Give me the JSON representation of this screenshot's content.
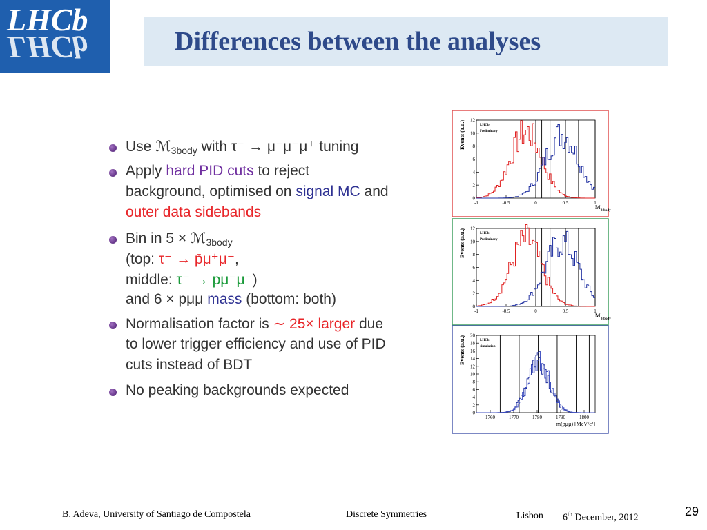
{
  "header": {
    "logo": "LHCb",
    "title": "Differences between the analyses"
  },
  "bullets": [
    {
      "lines": [
        [
          {
            "text": "Use "
          },
          {
            "text": "ℳ"
          },
          {
            "text": "3body",
            "sub": true
          },
          {
            "text": " with "
          },
          {
            "text": "τ⁻ → μ⁻μ⁻μ⁺"
          },
          {
            "text": " tuning"
          }
        ]
      ]
    },
    {
      "lines": [
        [
          {
            "text": "Apply "
          },
          {
            "text": "hard PID cuts",
            "color": "#7030a0"
          },
          {
            "text": " to reject"
          }
        ],
        [
          {
            "text": "background, optimised on "
          },
          {
            "text": "signal MC",
            "color": "#2e3192"
          },
          {
            "text": " and"
          }
        ],
        [
          {
            "text": "outer data sidebands",
            "color": "#e8262a"
          }
        ]
      ]
    },
    {
      "lines": [
        [
          {
            "text": "Bin in 5 × ℳ"
          },
          {
            "text": "3body",
            "sub": true
          }
        ],
        [
          {
            "text": "(top: "
          },
          {
            "text": "τ⁻ → p̄μ⁺μ⁻",
            "color": "#e8262a"
          },
          {
            "text": ","
          }
        ],
        [
          {
            "text": "middle: "
          },
          {
            "text": "τ⁻ → pμ⁻μ⁻",
            "color": "#1a9a3a"
          },
          {
            "text": ")"
          }
        ],
        [
          {
            "text": "and 6 × pμμ "
          },
          {
            "text": "mass",
            "color": "#2e3192"
          },
          {
            "text": " (bottom: both)"
          }
        ]
      ]
    },
    {
      "lines": [
        [
          {
            "text": "Normalisation factor is "
          },
          {
            "text": "∼ 25× larger",
            "color": "#e8262a"
          },
          {
            "text": " due"
          }
        ],
        [
          {
            "text": "to lower trigger efficiency and use of PID"
          }
        ],
        [
          {
            "text": "cuts instead of BDT"
          }
        ]
      ]
    },
    {
      "lines": [
        [
          {
            "text": "No peaking backgrounds expected"
          }
        ]
      ]
    }
  ],
  "plots": [
    {
      "border": "#e05050",
      "ylabel": "Events (a.u.)",
      "xlabel": "M",
      "xlabel_sub": "3-body",
      "legend": [
        "LHCb",
        "Preliminary"
      ],
      "yticks": [
        "0",
        "2",
        "4",
        "6",
        "8",
        "10",
        "12"
      ],
      "xticks": [
        "-1",
        "-0.5",
        "0",
        "0.5",
        "1"
      ]
    },
    {
      "border": "#40a060",
      "ylabel": "Events (a.u.)",
      "xlabel": "M",
      "xlabel_sub": "3-body",
      "legend": [
        "LHCb",
        "Preliminary"
      ],
      "yticks": [
        "0",
        "2",
        "4",
        "6",
        "8",
        "10",
        "12"
      ],
      "xticks": [
        "-1",
        "-0.5",
        "0",
        "0.5",
        "1"
      ]
    },
    {
      "border": "#5060b0",
      "ylabel": "Events (a.u.)",
      "xlabel": "m(pμμ) [MeV/c²]",
      "legend": [
        "LHCb",
        "simulation"
      ],
      "yticks": [
        "0",
        "2",
        "4",
        "6",
        "8",
        "10",
        "12",
        "14",
        "16",
        "18",
        "20"
      ],
      "xticks": [
        "1760",
        "1770",
        "1780",
        "1790",
        "1800"
      ]
    }
  ],
  "footer": {
    "author": "B. Adeva, University of  Santiago de Compostela",
    "conference": "Discrete  Symmetries",
    "place": "Lisbon",
    "day": "6",
    "day_suffix": "th",
    "date_rest": " December, 2012",
    "page": "29"
  }
}
